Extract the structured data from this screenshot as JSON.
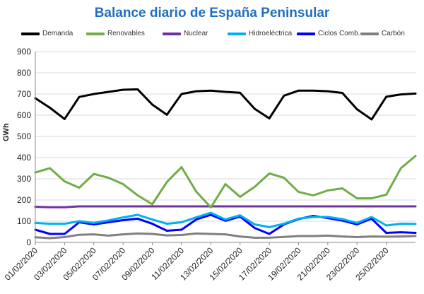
{
  "chart_data": {
    "type": "line",
    "title": "Balance diario de España Peninsular",
    "ylabel": "GWh",
    "xlabel": "",
    "ylim": [
      0,
      900
    ],
    "yticks": [
      0,
      100,
      200,
      300,
      400,
      500,
      600,
      700,
      800,
      900
    ],
    "grid": true,
    "legend_position": "top",
    "x_tick_labels": [
      "01/02/2020",
      "03/02/2020",
      "05/02/2020",
      "07/02/2020",
      "09/02/2020",
      "11/02/2020",
      "13/02/2020",
      "15/02/2020",
      "17/02/2020",
      "19/02/2020",
      "21/02/2020",
      "23/02/2020",
      "25/02/2020"
    ],
    "x": [
      "01/02/2020",
      "02/02/2020",
      "03/02/2020",
      "04/02/2020",
      "05/02/2020",
      "06/02/2020",
      "07/02/2020",
      "08/02/2020",
      "09/02/2020",
      "10/02/2020",
      "11/02/2020",
      "12/02/2020",
      "13/02/2020",
      "14/02/2020",
      "15/02/2020",
      "16/02/2020",
      "17/02/2020",
      "18/02/2020",
      "19/02/2020",
      "20/02/2020",
      "21/02/2020",
      "22/02/2020",
      "23/02/2020",
      "24/02/2020",
      "25/02/2020",
      "26/02/2020",
      "27/02/2020"
    ],
    "series": [
      {
        "name": "Demanda",
        "color": "#000000",
        "values": [
          680,
          635,
          582,
          686,
          700,
          710,
          720,
          722,
          650,
          602,
          700,
          713,
          716,
          710,
          706,
          630,
          585,
          692,
          716,
          716,
          713,
          705,
          628,
          580,
          687,
          698,
          702
        ]
      },
      {
        "name": "Renovables",
        "color": "#70ad47",
        "values": [
          330,
          350,
          288,
          258,
          323,
          305,
          275,
          222,
          180,
          285,
          355,
          240,
          165,
          275,
          215,
          262,
          325,
          305,
          238,
          222,
          245,
          255,
          208,
          208,
          225,
          350,
          408
        ]
      },
      {
        "name": "Nuclear",
        "color": "#7030a0",
        "values": [
          168,
          166,
          166,
          170,
          170,
          170,
          170,
          170,
          170,
          170,
          170,
          170,
          170,
          170,
          170,
          170,
          170,
          170,
          170,
          170,
          170,
          170,
          170,
          170,
          170,
          170,
          170
        ]
      },
      {
        "name": "Hidroeléctrica",
        "color": "#00b0f0",
        "values": [
          92,
          88,
          88,
          100,
          92,
          104,
          118,
          130,
          108,
          88,
          95,
          118,
          140,
          108,
          128,
          85,
          72,
          88,
          112,
          120,
          120,
          110,
          92,
          120,
          80,
          88,
          87
        ]
      },
      {
        "name": "Ciclos Comb.",
        "color": "#0000ff",
        "values": [
          60,
          40,
          40,
          95,
          85,
          95,
          105,
          112,
          88,
          55,
          60,
          108,
          130,
          102,
          122,
          68,
          40,
          85,
          110,
          125,
          115,
          103,
          85,
          112,
          45,
          48,
          45
        ]
      },
      {
        "name": "Carbón",
        "color": "#808080",
        "values": [
          24,
          20,
          25,
          36,
          38,
          32,
          38,
          42,
          40,
          33,
          35,
          42,
          40,
          38,
          28,
          22,
          22,
          26,
          30,
          30,
          32,
          28,
          25,
          28,
          27,
          28,
          30
        ]
      }
    ]
  }
}
